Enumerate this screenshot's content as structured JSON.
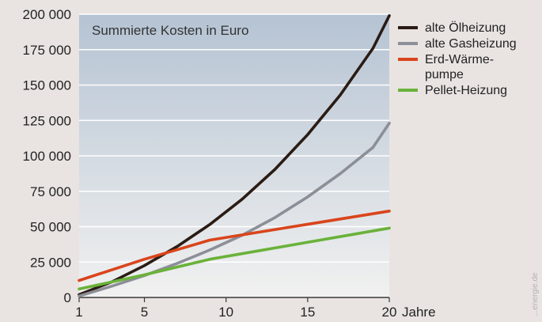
{
  "chart_data": {
    "type": "line",
    "title": "Summierte Kosten in Euro",
    "xlabel": "Jahre",
    "ylabel": "",
    "x_ticks": [
      1,
      5,
      10,
      15,
      20
    ],
    "y_ticks": [
      "200 000",
      "175 000",
      "150 000",
      "125 000",
      "100 000",
      "75 000",
      "50 000",
      "25 000",
      "0"
    ],
    "xlim": [
      1,
      20
    ],
    "ylim": [
      0,
      200000
    ],
    "grid": "horizontal",
    "legend_position": "right",
    "credit": "...energie.de",
    "series": [
      {
        "name": "alte Ölheizung",
        "color": "#2a1c14",
        "x": [
          1,
          3,
          5,
          7,
          9,
          11,
          13,
          15,
          17,
          19,
          20
        ],
        "y": [
          2000,
          11000,
          22500,
          36000,
          51500,
          69500,
          90500,
          115000,
          143000,
          176000,
          199000
        ]
      },
      {
        "name": "alte Gasheizung",
        "color": "#8c8e98",
        "x": [
          1,
          3,
          5,
          7,
          9,
          11,
          13,
          15,
          17,
          19,
          20
        ],
        "y": [
          1000,
          8000,
          15500,
          24000,
          33500,
          44000,
          56500,
          71000,
          87500,
          106000,
          123000
        ]
      },
      {
        "name": "Erd-Wärme-pumpe",
        "name_lines": [
          "Erd-Wärme-",
          "pumpe"
        ],
        "color": "#d9451c",
        "x": [
          1,
          5,
          9,
          20
        ],
        "y": [
          12000,
          27000,
          40500,
          61000
        ]
      },
      {
        "name": "Pellet-Heizung",
        "color": "#6ab23a",
        "x": [
          1,
          5,
          9,
          20
        ],
        "y": [
          6000,
          16000,
          27000,
          49000
        ]
      }
    ]
  }
}
